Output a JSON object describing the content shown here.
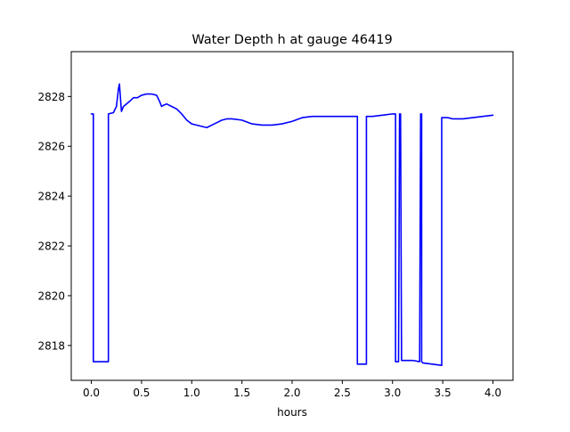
{
  "chart_data": {
    "type": "line",
    "title": "Water Depth h at gauge 46419",
    "xlabel": "hours",
    "ylabel": "",
    "xlim": [
      -0.2,
      4.2
    ],
    "ylim": [
      2816.6,
      2829.8
    ],
    "x_ticks": [
      0.0,
      0.5,
      1.0,
      1.5,
      2.0,
      2.5,
      3.0,
      3.5,
      4.0
    ],
    "x_tick_labels": [
      "0.0",
      "0.5",
      "1.0",
      "1.5",
      "2.0",
      "2.5",
      "3.0",
      "3.5",
      "4.0"
    ],
    "y_ticks": [
      2818,
      2820,
      2822,
      2824,
      2826,
      2828
    ],
    "y_tick_labels": [
      "2818",
      "2820",
      "2822",
      "2824",
      "2826",
      "2828"
    ],
    "grid": false,
    "legend": "none",
    "series": [
      {
        "color": "#0000ff",
        "x": [
          0.0,
          0.02,
          0.02,
          0.17,
          0.17,
          0.22,
          0.25,
          0.27,
          0.28,
          0.3,
          0.32,
          0.35,
          0.38,
          0.42,
          0.46,
          0.5,
          0.55,
          0.6,
          0.65,
          0.68,
          0.7,
          0.72,
          0.75,
          0.8,
          0.85,
          0.9,
          0.95,
          1.0,
          1.05,
          1.1,
          1.15,
          1.2,
          1.25,
          1.3,
          1.35,
          1.4,
          1.5,
          1.6,
          1.7,
          1.8,
          1.9,
          2.0,
          2.1,
          2.2,
          2.3,
          2.4,
          2.5,
          2.6,
          2.65,
          2.65,
          2.74,
          2.74,
          2.8,
          2.9,
          3.0,
          3.03,
          3.03,
          3.06,
          3.07,
          3.08,
          3.09,
          3.09,
          3.1,
          3.2,
          3.27,
          3.28,
          3.29,
          3.29,
          3.3,
          3.49,
          3.49,
          3.55,
          3.6,
          3.7,
          3.8,
          3.9,
          4.0
        ],
        "y": [
          2827.3,
          2827.3,
          2817.35,
          2817.35,
          2827.3,
          2827.35,
          2827.6,
          2828.3,
          2828.5,
          2827.4,
          2827.6,
          2827.7,
          2827.8,
          2827.95,
          2827.95,
          2828.05,
          2828.1,
          2828.1,
          2828.05,
          2827.8,
          2827.6,
          2827.65,
          2827.7,
          2827.6,
          2827.5,
          2827.3,
          2827.05,
          2826.9,
          2826.85,
          2826.8,
          2826.75,
          2826.85,
          2826.95,
          2827.05,
          2827.1,
          2827.1,
          2827.05,
          2826.9,
          2826.85,
          2826.85,
          2826.9,
          2827.0,
          2827.15,
          2827.2,
          2827.2,
          2827.2,
          2827.2,
          2827.2,
          2827.2,
          2817.25,
          2817.25,
          2827.2,
          2827.2,
          2827.25,
          2827.3,
          2827.3,
          2817.35,
          2817.35,
          2827.3,
          2827.3,
          2817.4,
          2817.4,
          2817.4,
          2817.4,
          2817.35,
          2827.3,
          2827.3,
          2817.35,
          2817.3,
          2817.2,
          2827.15,
          2827.15,
          2827.1,
          2827.1,
          2827.15,
          2827.2,
          2827.25
        ]
      }
    ]
  }
}
